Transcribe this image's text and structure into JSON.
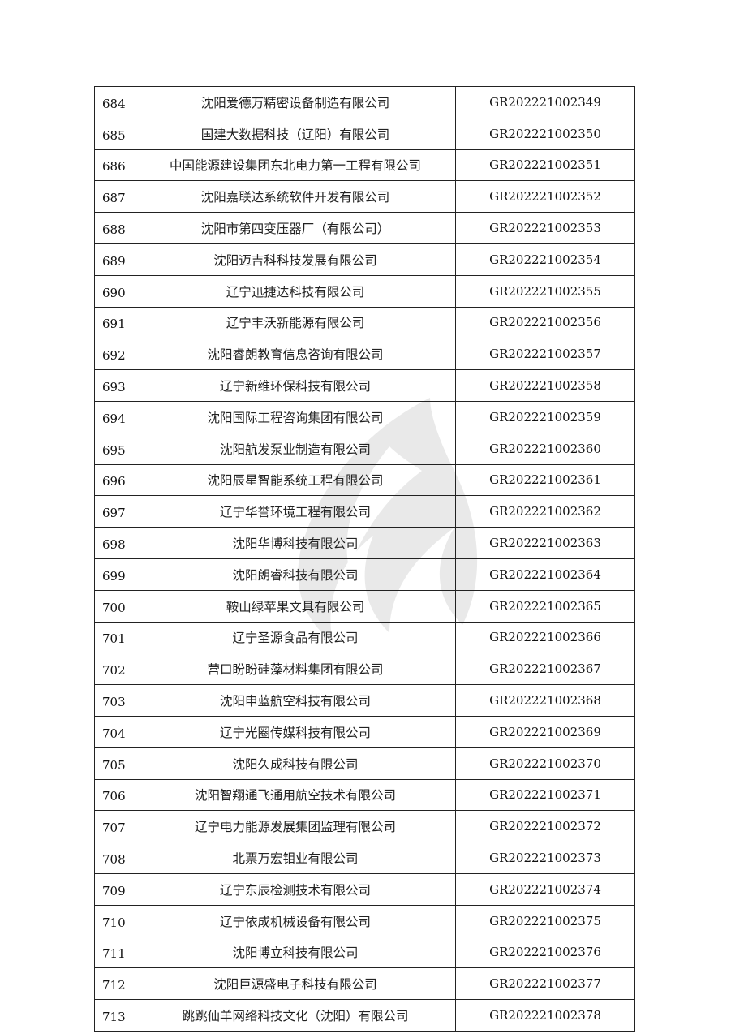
{
  "rows": [
    {
      "no": "684",
      "name": "沈阳爱德万精密设备制造有限公司",
      "code": "GR202221002349"
    },
    {
      "no": "685",
      "name": "国建大数据科技（辽阳）有限公司",
      "code": "GR202221002350"
    },
    {
      "no": "686",
      "name": "中国能源建设集团东北电力第一工程有限公司",
      "code": "GR202221002351"
    },
    {
      "no": "687",
      "name": "沈阳嘉联达系统软件开发有限公司",
      "code": "GR202221002352"
    },
    {
      "no": "688",
      "name": "沈阳市第四变压器厂（有限公司）",
      "code": "GR202221002353"
    },
    {
      "no": "689",
      "name": "沈阳迈吉科科技发展有限公司",
      "code": "GR202221002354"
    },
    {
      "no": "690",
      "name": "辽宁迅捷达科技有限公司",
      "code": "GR202221002355"
    },
    {
      "no": "691",
      "name": "辽宁丰沃新能源有限公司",
      "code": "GR202221002356"
    },
    {
      "no": "692",
      "name": "沈阳睿朗教育信息咨询有限公司",
      "code": "GR202221002357"
    },
    {
      "no": "693",
      "name": "辽宁新维环保科技有限公司",
      "code": "GR202221002358"
    },
    {
      "no": "694",
      "name": "沈阳国际工程咨询集团有限公司",
      "code": "GR202221002359"
    },
    {
      "no": "695",
      "name": "沈阳航发泵业制造有限公司",
      "code": "GR202221002360"
    },
    {
      "no": "696",
      "name": "沈阳辰星智能系统工程有限公司",
      "code": "GR202221002361"
    },
    {
      "no": "697",
      "name": "辽宁华誉环境工程有限公司",
      "code": "GR202221002362"
    },
    {
      "no": "698",
      "name": "沈阳华博科技有限公司",
      "code": "GR202221002363"
    },
    {
      "no": "699",
      "name": "沈阳朗睿科技有限公司",
      "code": "GR202221002364"
    },
    {
      "no": "700",
      "name": "鞍山绿苹果文具有限公司",
      "code": "GR202221002365"
    },
    {
      "no": "701",
      "name": "辽宁圣源食品有限公司",
      "code": "GR202221002366"
    },
    {
      "no": "702",
      "name": "营口盼盼硅藻材料集团有限公司",
      "code": "GR202221002367"
    },
    {
      "no": "703",
      "name": "沈阳申蓝航空科技有限公司",
      "code": "GR202221002368"
    },
    {
      "no": "704",
      "name": "辽宁光圈传媒科技有限公司",
      "code": "GR202221002369"
    },
    {
      "no": "705",
      "name": "沈阳久成科技有限公司",
      "code": "GR202221002370"
    },
    {
      "no": "706",
      "name": "沈阳智翔通飞通用航空技术有限公司",
      "code": "GR202221002371"
    },
    {
      "no": "707",
      "name": "辽宁电力能源发展集团监理有限公司",
      "code": "GR202221002372"
    },
    {
      "no": "708",
      "name": "北票万宏钼业有限公司",
      "code": "GR202221002373"
    },
    {
      "no": "709",
      "name": "辽宁东辰检测技术有限公司",
      "code": "GR202221002374"
    },
    {
      "no": "710",
      "name": "辽宁依成机械设备有限公司",
      "code": "GR202221002375"
    },
    {
      "no": "711",
      "name": "沈阳博立科技有限公司",
      "code": "GR202221002376"
    },
    {
      "no": "712",
      "name": "沈阳巨源盛电子科技有限公司",
      "code": "GR202221002377"
    },
    {
      "no": "713",
      "name": "跳跳仙羊网络科技文化（沈阳）有限公司",
      "code": "GR202221002378"
    }
  ],
  "watermark": {
    "icon": "flame-logo-icon",
    "color": "#888888"
  }
}
